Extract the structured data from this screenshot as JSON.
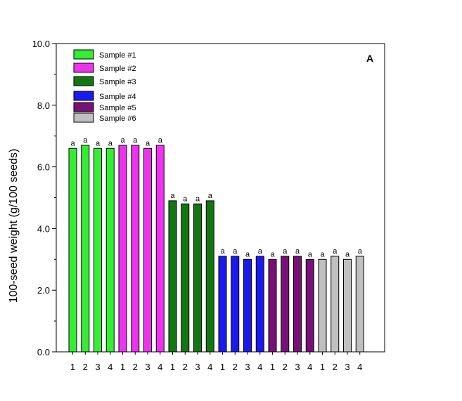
{
  "chart_data": {
    "type": "bar",
    "panel_label": "A",
    "ylabel": "100-seed weight (g/100 seeds)",
    "xlabel": "",
    "ylim": [
      0,
      10
    ],
    "yticks": [
      "0.0",
      "2.0",
      "4.0",
      "6.0",
      "8.0",
      "10.0"
    ],
    "grid": false,
    "legend_position": "top-left",
    "categories": [
      "1",
      "2",
      "3",
      "4"
    ],
    "series": [
      {
        "name": "Sample #1",
        "color": "#33ee33",
        "values": [
          6.6,
          6.7,
          6.6,
          6.6
        ],
        "labels": [
          "a",
          "a",
          "a",
          "a"
        ]
      },
      {
        "name": "Sample #2",
        "color": "#ee33ee",
        "values": [
          6.7,
          6.7,
          6.6,
          6.7
        ],
        "labels": [
          "a",
          "a",
          "a",
          "a"
        ]
      },
      {
        "name": "Sample #3",
        "color": "#117711",
        "values": [
          4.9,
          4.8,
          4.8,
          4.9
        ],
        "labels": [
          "a",
          "a",
          "a",
          "a"
        ]
      },
      {
        "name": "Sample #4",
        "color": "#1a1aee",
        "values": [
          3.1,
          3.1,
          3.0,
          3.1
        ],
        "labels": [
          "a",
          "a",
          "a",
          "a"
        ]
      },
      {
        "name": "Sample #5",
        "color": "#771177",
        "values": [
          3.0,
          3.1,
          3.1,
          3.0
        ],
        "labels": [
          "a",
          "a",
          "a",
          "a"
        ]
      },
      {
        "name": "Sample #6",
        "color": "#c0c0c0",
        "values": [
          3.0,
          3.1,
          3.0,
          3.1
        ],
        "labels": [
          "a",
          "a",
          "a",
          "a"
        ]
      }
    ]
  }
}
